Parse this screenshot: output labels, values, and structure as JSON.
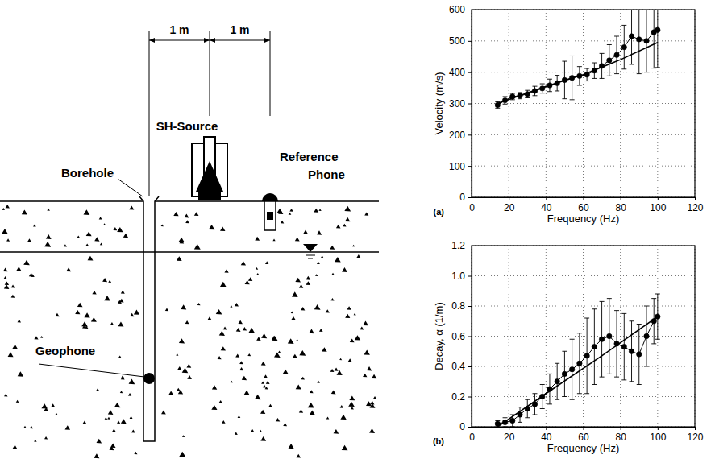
{
  "diagram": {
    "dimension_labels": [
      "1 m",
      "1 m"
    ],
    "source_label": "SH-Source",
    "reference_label": "Reference Phone",
    "borehole_label": "Borehole",
    "geophone_label": "Geophone"
  },
  "chart_data": [
    {
      "type": "line",
      "panel_label": "(a)",
      "x_label": "Frequency (Hz)",
      "y_label": "Velocity (m/s)",
      "xlim": [
        0,
        120
      ],
      "xticks": [
        0,
        20,
        40,
        60,
        80,
        100,
        120
      ],
      "ylim": [
        0,
        600
      ],
      "yticks": [
        0,
        100,
        200,
        300,
        400,
        500,
        600
      ],
      "grid": true,
      "series": [
        {
          "type": "line",
          "marker": "circle",
          "line_style": "solid",
          "color": "#000000",
          "x": [
            14,
            18,
            22,
            26,
            30,
            34,
            38,
            42,
            46,
            50,
            54,
            58,
            62,
            66,
            70,
            74,
            78,
            82,
            86,
            90,
            94,
            98,
            100
          ],
          "values": [
            295,
            310,
            322,
            325,
            330,
            340,
            348,
            358,
            365,
            375,
            382,
            388,
            392,
            405,
            420,
            438,
            455,
            480,
            515,
            505,
            500,
            528,
            535
          ],
          "errors": [
            10,
            12,
            10,
            10,
            12,
            15,
            15,
            20,
            25,
            60,
            70,
            30,
            20,
            25,
            40,
            50,
            60,
            70,
            90,
            110,
            100,
            115,
            120
          ]
        },
        {
          "type": "line",
          "marker": "none",
          "line_style": "solid",
          "color": "#000000",
          "x": [
            14,
            40,
            60,
            80,
            100
          ],
          "values": [
            300,
            355,
            392,
            440,
            495
          ]
        }
      ]
    },
    {
      "type": "line",
      "panel_label": "(b)",
      "x_label": "Frequency (Hz)",
      "y_label": "Decay, α (1/m)",
      "xlim": [
        0,
        120
      ],
      "xticks": [
        0,
        20,
        40,
        60,
        80,
        100,
        120
      ],
      "ylim": [
        0,
        1.2
      ],
      "yticks": [
        0,
        0.2,
        0.4,
        0.6,
        0.8,
        {
          "value": 1,
          "label": "1.0"
        },
        1.2
      ],
      "grid": true,
      "series": [
        {
          "type": "line",
          "marker": "circle",
          "line_style": "solid",
          "color": "#000000",
          "x": [
            14,
            18,
            22,
            26,
            30,
            34,
            38,
            42,
            46,
            50,
            54,
            58,
            62,
            66,
            70,
            74,
            78,
            82,
            86,
            90,
            94,
            98,
            100
          ],
          "values": [
            0.02,
            0.03,
            0.04,
            0.08,
            0.12,
            0.15,
            0.2,
            0.25,
            0.3,
            0.35,
            0.38,
            0.42,
            0.47,
            0.53,
            0.58,
            0.6,
            0.55,
            0.53,
            0.5,
            0.48,
            0.6,
            0.7,
            0.73
          ],
          "errors": [
            0.02,
            0.03,
            0.04,
            0.05,
            0.06,
            0.07,
            0.08,
            0.1,
            0.12,
            0.15,
            0.2,
            0.2,
            0.25,
            0.25,
            0.25,
            0.25,
            0.22,
            0.22,
            0.2,
            0.2,
            0.2,
            0.15,
            0.15
          ]
        },
        {
          "type": "line",
          "marker": "none",
          "line_style": "solid",
          "color": "#000000",
          "x": [
            14,
            40,
            70,
            100
          ],
          "values": [
            0,
            0.22,
            0.47,
            0.73
          ]
        }
      ]
    }
  ]
}
